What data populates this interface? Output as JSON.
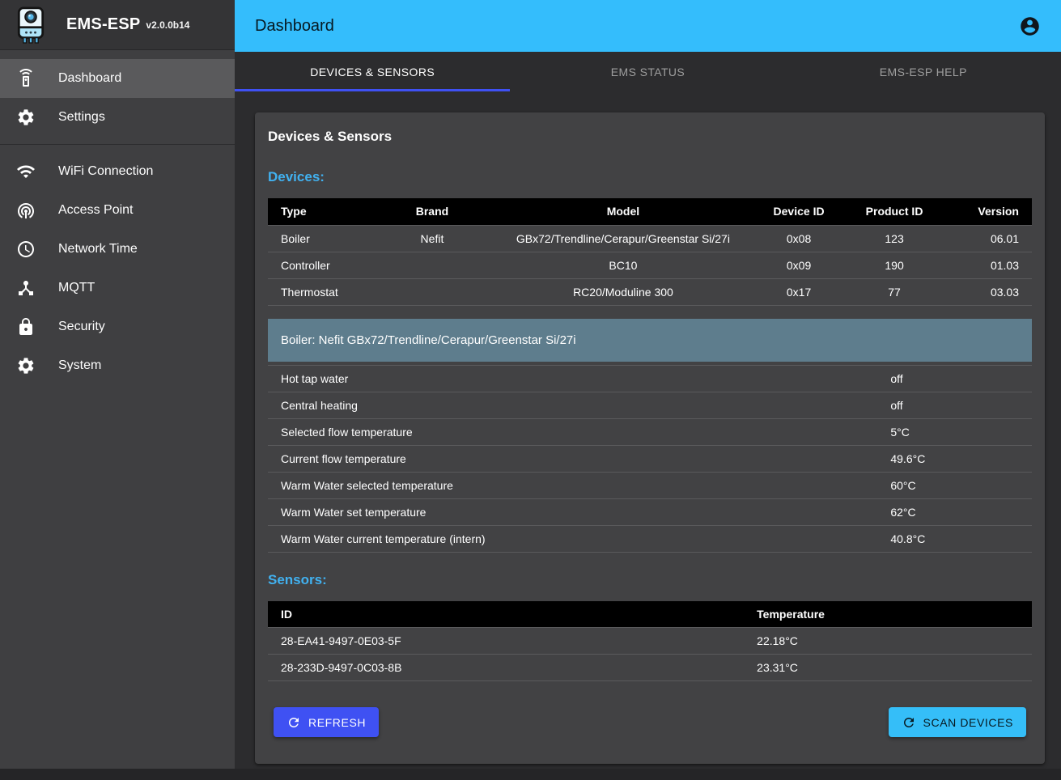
{
  "app": {
    "name": "EMS-ESP",
    "version": "v2.0.0b14",
    "logo_icon": "boiler-logo-icon"
  },
  "colors": {
    "appbar_blue": "#34bdfc",
    "accent_indigo": "#3f51f3",
    "heading_blue": "#41b1f0",
    "boiler_header_blue_gray": "#5e7d8d",
    "scan_button_blue": "#35bef8"
  },
  "header": {
    "title": "Dashboard",
    "account_icon": "account-circle-icon"
  },
  "sidebar": {
    "items": [
      {
        "label": "Dashboard",
        "icon": "settings-remote-icon",
        "selected": true,
        "group": 1
      },
      {
        "label": "Settings",
        "icon": "gear-icon",
        "selected": false,
        "group": 1
      },
      {
        "label": "WiFi Connection",
        "icon": "wifi-icon",
        "selected": false,
        "group": 2
      },
      {
        "label": "Access Point",
        "icon": "wifi-tethering-icon",
        "selected": false,
        "group": 2
      },
      {
        "label": "Network Time",
        "icon": "clock-icon",
        "selected": false,
        "group": 2
      },
      {
        "label": "MQTT",
        "icon": "device-hub-icon",
        "selected": false,
        "group": 2
      },
      {
        "label": "Security",
        "icon": "lock-icon",
        "selected": false,
        "group": 2
      },
      {
        "label": "System",
        "icon": "gear-icon",
        "selected": false,
        "group": 2
      }
    ]
  },
  "tabs": [
    {
      "label": "DEVICES & SENSORS",
      "active": true
    },
    {
      "label": "EMS STATUS",
      "active": false
    },
    {
      "label": "EMS-ESP HELP",
      "active": false
    }
  ],
  "panel": {
    "title": "Devices & Sensors",
    "devices": {
      "heading": "Devices:",
      "headers": [
        "Type",
        "Brand",
        "Model",
        "Device ID",
        "Product ID",
        "Version"
      ],
      "rows": [
        [
          "Boiler",
          "Nefit",
          "GBx72/Trendline/Cerapur/Greenstar Si/27i",
          "0x08",
          "123",
          "06.01"
        ],
        [
          "Controller",
          "",
          "BC10",
          "0x09",
          "190",
          "01.03"
        ],
        [
          "Thermostat",
          "",
          "RC20/Moduline 300",
          "0x17",
          "77",
          "03.03"
        ]
      ]
    },
    "boiler": {
      "heading": "Boiler: Nefit GBx72/Trendline/Cerapur/Greenstar Si/27i",
      "rows": [
        {
          "label": "Hot tap water",
          "value": "off"
        },
        {
          "label": "Central heating",
          "value": "off"
        },
        {
          "label": "Selected flow temperature",
          "value": "5°C"
        },
        {
          "label": "Current flow temperature",
          "value": "49.6°C"
        },
        {
          "label": "Warm Water selected temperature",
          "value": "60°C"
        },
        {
          "label": "Warm Water set temperature",
          "value": "62°C"
        },
        {
          "label": "Warm Water current temperature (intern)",
          "value": "40.8°C"
        }
      ]
    },
    "sensors": {
      "heading": "Sensors:",
      "headers": [
        "ID",
        "Temperature"
      ],
      "rows": [
        [
          "28-EA41-9497-0E03-5F",
          "22.18°C"
        ],
        [
          "28-233D-9497-0C03-8B",
          "23.31°C"
        ]
      ]
    },
    "buttons": {
      "refresh_label": "REFRESH",
      "refresh_icon": "refresh-icon",
      "scan_label": "SCAN DEVICES",
      "scan_icon": "refresh-icon"
    }
  }
}
